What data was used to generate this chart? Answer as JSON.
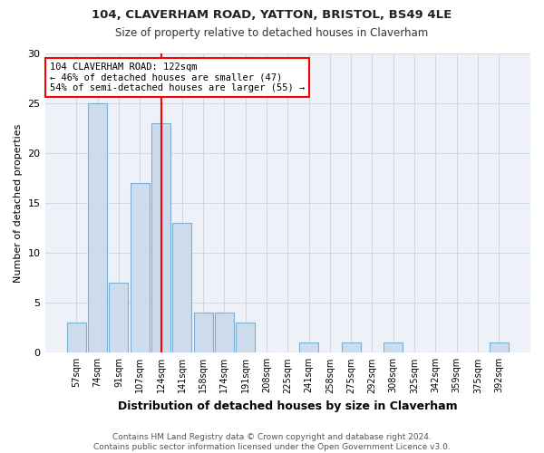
{
  "title1": "104, CLAVERHAM ROAD, YATTON, BRISTOL, BS49 4LE",
  "title2": "Size of property relative to detached houses in Claverham",
  "xlabel": "Distribution of detached houses by size in Claverham",
  "ylabel": "Number of detached properties",
  "footnote": "Contains HM Land Registry data © Crown copyright and database right 2024.\nContains public sector information licensed under the Open Government Licence v3.0.",
  "categories": [
    "57sqm",
    "74sqm",
    "91sqm",
    "107sqm",
    "124sqm",
    "141sqm",
    "158sqm",
    "174sqm",
    "191sqm",
    "208sqm",
    "225sqm",
    "241sqm",
    "258sqm",
    "275sqm",
    "292sqm",
    "308sqm",
    "325sqm",
    "342sqm",
    "359sqm",
    "375sqm",
    "392sqm"
  ],
  "values": [
    3,
    25,
    7,
    17,
    23,
    13,
    4,
    4,
    3,
    0,
    0,
    1,
    0,
    1,
    0,
    1,
    0,
    0,
    0,
    0,
    1
  ],
  "bar_color": "#ccdcec",
  "bar_edge_color": "#7bafd4",
  "vline_x_index": 4,
  "vline_color": "red",
  "annotation_text": "104 CLAVERHAM ROAD: 122sqm\n← 46% of detached houses are smaller (47)\n54% of semi-detached houses are larger (55) →",
  "annotation_box_color": "white",
  "annotation_box_edge_color": "red",
  "ylim": [
    0,
    30
  ],
  "yticks": [
    0,
    5,
    10,
    15,
    20,
    25,
    30
  ],
  "grid_color": "#d0d8e8",
  "bg_color": "#eef2f8",
  "fig_bg_color": "#ffffff"
}
